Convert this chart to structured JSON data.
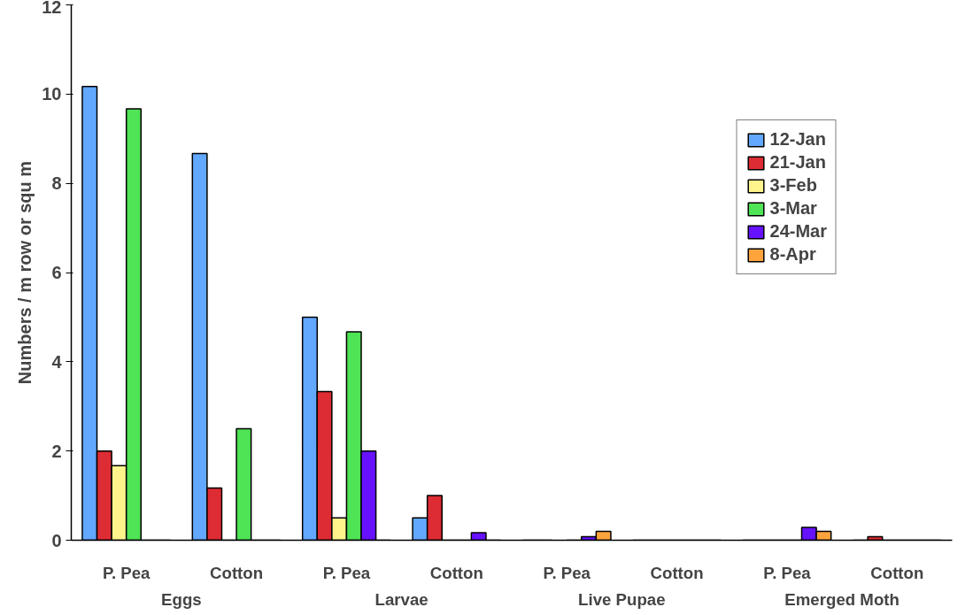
{
  "chart_data": {
    "type": "bar",
    "ylabel": "Numbers / m row or squ m",
    "categories": [
      "P. Pea",
      "Cotton",
      "P. Pea",
      "Cotton",
      "P. Pea",
      "Cotton",
      "P. Pea",
      "Cotton"
    ],
    "annotations": [
      "Eggs",
      "Larvae",
      "Live Pupae",
      "Emerged Moth"
    ],
    "series": [
      {
        "name": "12-Jan",
        "color": "#62a8ff",
        "values": [
          10.17,
          8.67,
          5.0,
          0.5,
          0,
          0,
          0,
          0
        ]
      },
      {
        "name": "21-Jan",
        "color": "#dd2c33",
        "values": [
          2.0,
          1.17,
          3.33,
          1.0,
          0,
          0,
          0,
          0.08
        ]
      },
      {
        "name": "3-Feb",
        "color": "#fff48c",
        "values": [
          1.67,
          0,
          0.5,
          0,
          null,
          0,
          0,
          0
        ]
      },
      {
        "name": "3-Mar",
        "color": "#4fe356",
        "values": [
          9.67,
          2.5,
          4.67,
          0,
          0,
          0,
          0,
          0
        ]
      },
      {
        "name": "24-Mar",
        "color": "#6712ff",
        "values": [
          0,
          0,
          2.0,
          0.17,
          0.08,
          0,
          0.29,
          0
        ]
      },
      {
        "name": "8-Apr",
        "color": "#ffa43d",
        "values": [
          0,
          0,
          0,
          0,
          0.2,
          0,
          0.2,
          0
        ]
      }
    ],
    "ylim": [
      0,
      12
    ],
    "yticks": [
      0,
      2,
      4,
      6,
      8,
      10,
      12
    ],
    "grid": false,
    "legend": "top right"
  }
}
